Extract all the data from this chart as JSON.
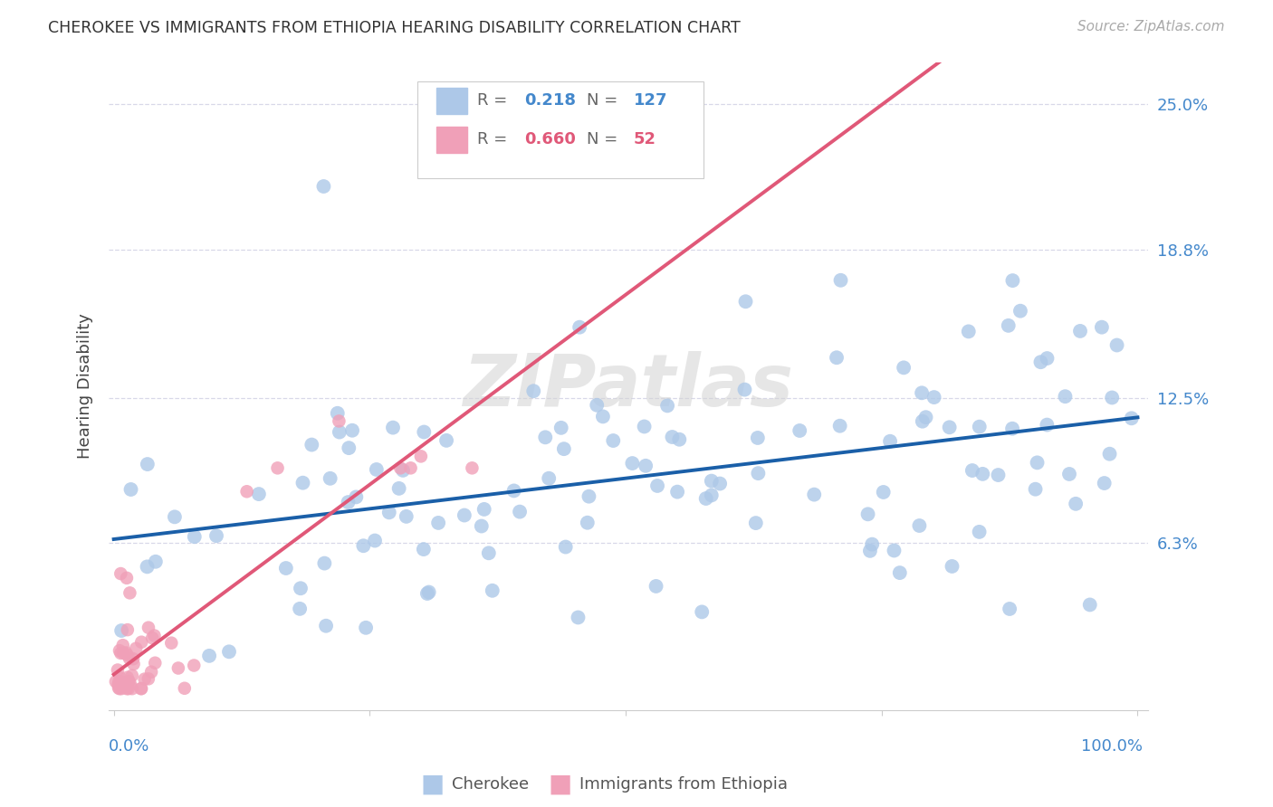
{
  "title": "CHEROKEE VS IMMIGRANTS FROM ETHIOPIA HEARING DISABILITY CORRELATION CHART",
  "source": "Source: ZipAtlas.com",
  "ylabel": "Hearing Disability",
  "cherokee_R": 0.218,
  "cherokee_N": 127,
  "ethiopia_R": 0.66,
  "ethiopia_N": 52,
  "cherokee_color": "#adc8e8",
  "cherokee_line_color": "#1a5fa8",
  "ethiopia_color": "#f0a0b8",
  "ethiopia_line_color": "#e05878",
  "ethiopia_dash_color": "#f0a8b8",
  "bg_color": "#ffffff",
  "ytick_vals": [
    0.0,
    0.063,
    0.125,
    0.188,
    0.25
  ],
  "ytick_labels": [
    "",
    "6.3%",
    "12.5%",
    "18.8%",
    "25.0%"
  ]
}
